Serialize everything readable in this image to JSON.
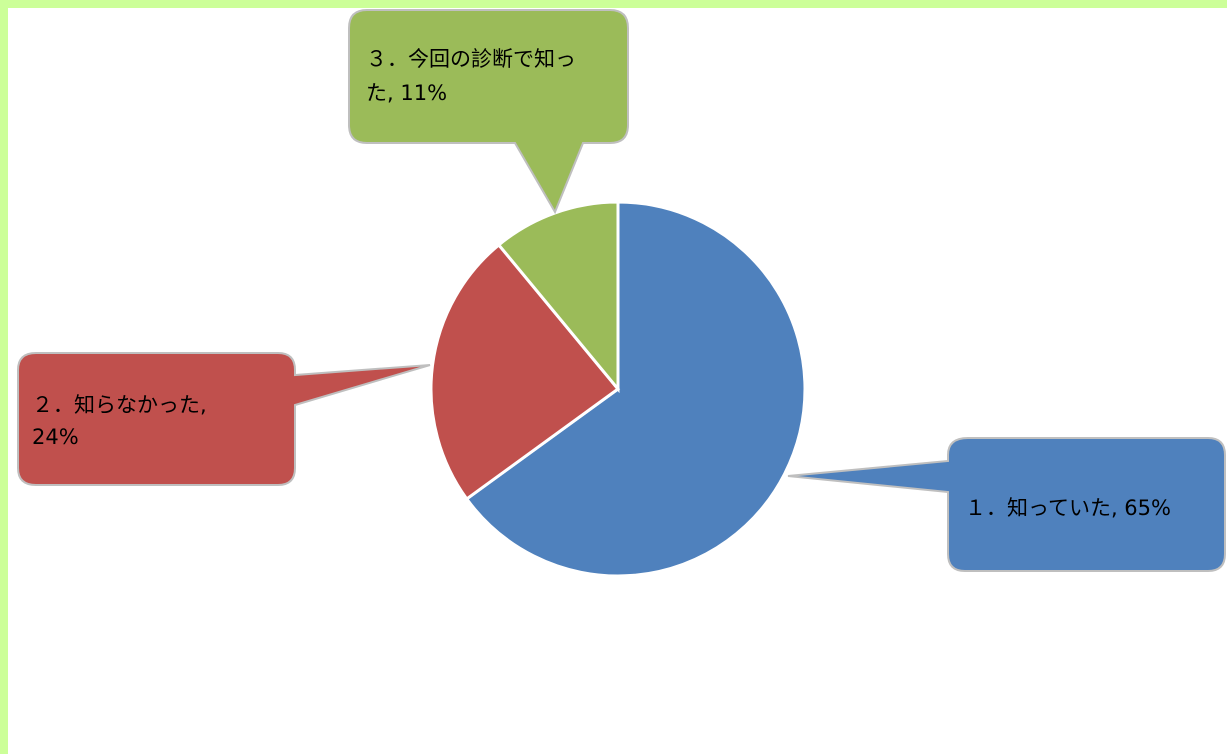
{
  "chart_data": {
    "type": "pie",
    "slices": [
      {
        "label": "１．知っていた",
        "value": 65,
        "data_label_line1": "１．知っていた, 65%",
        "data_label_line2": "",
        "color": "#4f81bd"
      },
      {
        "label": "２．知らなかった",
        "value": 24,
        "data_label_line1": "２．知らなかった,",
        "data_label_line2": "24%",
        "color": "#c0504d"
      },
      {
        "label": "３．今回の診断で知った",
        "value": 11,
        "data_label_line1": "３．今回の診断で知っ",
        "data_label_line2": "た, 11%",
        "color": "#9bbb59"
      }
    ],
    "title": "",
    "legend": "none",
    "start": "top",
    "direction": "clockwise"
  },
  "colors": {
    "frame": "#ccff99",
    "slice_border": "#ffffff",
    "callout_border": "#bfbfbf"
  }
}
